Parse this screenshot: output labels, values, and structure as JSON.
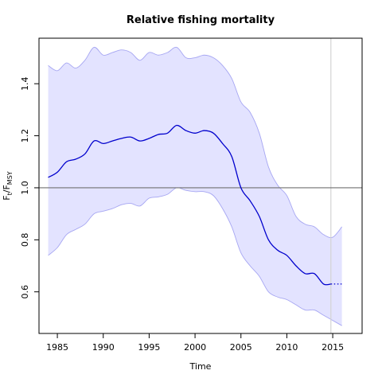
{
  "chart_data": {
    "type": "line",
    "title": "Relative fishing mortality",
    "xlabel": "Time",
    "ylabel": {
      "main": "F",
      "num_sub": "t",
      "sep": "/",
      "den": "F",
      "den_sub": "MSY"
    },
    "xlim": [
      1983,
      2018.2
    ],
    "ylim": [
      0.44,
      1.575
    ],
    "x_ticks": [
      1985,
      1990,
      1995,
      2000,
      2005,
      2010,
      2015
    ],
    "y_ticks": [
      0.6,
      0.8,
      1.0,
      1.2,
      1.4
    ],
    "y_tick_labels": [
      "0.6",
      "0.8",
      "1.0",
      "1.2",
      "1.4"
    ],
    "reference_line": {
      "y": 1.0,
      "color": "#707070"
    },
    "vertical_line": {
      "x": 2014.8,
      "color": "#d3d3d3"
    },
    "colors": {
      "line": "#0000cd",
      "band_fill": "#e3e3ff",
      "band_edge": "#a6a6f2"
    },
    "series": [
      {
        "role": "estimate",
        "x": [
          1984,
          1985,
          1986,
          1987,
          1988,
          1989,
          1990,
          1991,
          1992,
          1993,
          1994,
          1995,
          1996,
          1997,
          1998,
          1999,
          2000,
          2001,
          2002,
          2003,
          2004,
          2005,
          2006,
          2007,
          2008,
          2009,
          2010,
          2011,
          2012,
          2013,
          2014,
          2014.8
        ],
        "y": [
          1.04,
          1.06,
          1.1,
          1.11,
          1.13,
          1.18,
          1.17,
          1.18,
          1.19,
          1.195,
          1.18,
          1.19,
          1.205,
          1.21,
          1.24,
          1.22,
          1.21,
          1.22,
          1.21,
          1.17,
          1.12,
          1.0,
          0.95,
          0.89,
          0.8,
          0.76,
          0.74,
          0.7,
          0.67,
          0.67,
          0.63,
          0.63
        ]
      },
      {
        "role": "projection",
        "style": "dotted",
        "x": [
          2014.8,
          2016
        ],
        "y": [
          0.63,
          0.63
        ]
      }
    ],
    "band": {
      "x": [
        1984,
        1985,
        1986,
        1987,
        1988,
        1989,
        1990,
        1991,
        1992,
        1993,
        1994,
        1995,
        1996,
        1997,
        1998,
        1999,
        2000,
        2001,
        2002,
        2003,
        2004,
        2005,
        2006,
        2007,
        2008,
        2009,
        2010,
        2011,
        2012,
        2013,
        2014,
        2015,
        2016
      ],
      "upper": [
        1.47,
        1.45,
        1.48,
        1.46,
        1.49,
        1.54,
        1.51,
        1.52,
        1.53,
        1.52,
        1.49,
        1.52,
        1.51,
        1.52,
        1.54,
        1.5,
        1.5,
        1.51,
        1.5,
        1.47,
        1.42,
        1.33,
        1.29,
        1.21,
        1.08,
        1.01,
        0.97,
        0.89,
        0.86,
        0.85,
        0.82,
        0.81,
        0.85
      ],
      "lower": [
        0.74,
        0.77,
        0.82,
        0.84,
        0.86,
        0.9,
        0.91,
        0.92,
        0.935,
        0.94,
        0.93,
        0.96,
        0.965,
        0.975,
        1.0,
        0.99,
        0.985,
        0.985,
        0.97,
        0.92,
        0.85,
        0.75,
        0.7,
        0.66,
        0.6,
        0.58,
        0.57,
        0.55,
        0.53,
        0.53,
        0.51,
        0.49,
        0.47
      ]
    }
  }
}
